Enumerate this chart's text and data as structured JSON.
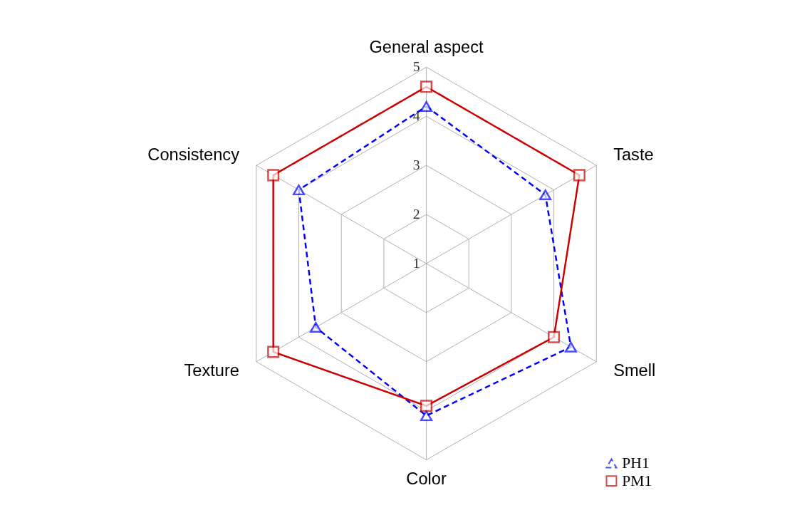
{
  "chart_data": {
    "type": "radar",
    "categories": [
      "General aspect",
      "Taste",
      "Smell",
      "Color",
      "Texture",
      "Consistency"
    ],
    "ylim": [
      1,
      5
    ],
    "yticks": [
      1,
      2,
      3,
      4,
      5
    ],
    "grid": true,
    "legend": "bottom right",
    "series": [
      {
        "name": "PH1",
        "color": "#0000ff",
        "line_style": "dashed",
        "marker": "triangle",
        "values": [
          4.2,
          3.8,
          4.4,
          4.1,
          3.6,
          4.0
        ]
      },
      {
        "name": "PM1",
        "color": "#cc0000",
        "line_style": "solid",
        "marker": "square",
        "values": [
          4.6,
          4.6,
          4.0,
          3.9,
          4.6,
          4.6
        ]
      }
    ]
  }
}
